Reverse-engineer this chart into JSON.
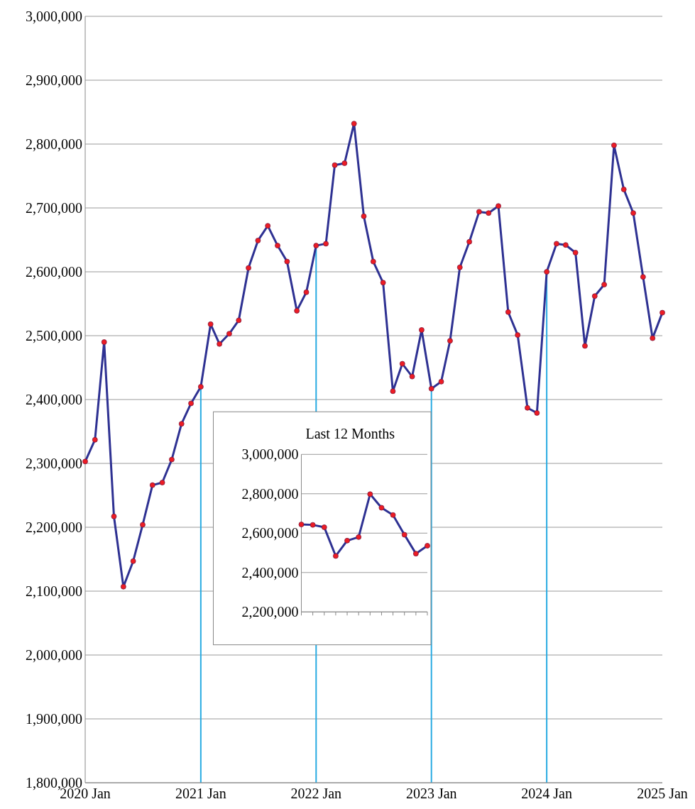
{
  "chart_data": [
    {
      "type": "line",
      "x": [
        "2020-01",
        "2020-02",
        "2020-03",
        "2020-04",
        "2020-05",
        "2020-06",
        "2020-07",
        "2020-08",
        "2020-09",
        "2020-10",
        "2020-11",
        "2020-12",
        "2021-01",
        "2021-02",
        "2021-03",
        "2021-04",
        "2021-05",
        "2021-06",
        "2021-07",
        "2021-08",
        "2021-09",
        "2021-10",
        "2021-11",
        "2021-12",
        "2022-01",
        "2022-02",
        "2022-03",
        "2022-04",
        "2022-05",
        "2022-06",
        "2022-07",
        "2022-08",
        "2022-09",
        "2022-10",
        "2022-11",
        "2022-12",
        "2023-01",
        "2023-02",
        "2023-03",
        "2023-04",
        "2023-05",
        "2023-06",
        "2023-07",
        "2023-08",
        "2023-09",
        "2023-10",
        "2023-11",
        "2023-12",
        "2024-01",
        "2024-02",
        "2024-03",
        "2024-04",
        "2024-05",
        "2024-06",
        "2024-07",
        "2024-08",
        "2024-09",
        "2024-10",
        "2024-11",
        "2024-12",
        "2025-01"
      ],
      "series": [
        {
          "color": "#2e3192",
          "values": [
            2303000,
            2337000,
            2490000,
            2217000,
            2107000,
            2147000,
            2204000,
            2266000,
            2270000,
            2306000,
            2362000,
            2394000,
            2420000,
            2518000,
            2487000,
            2503000,
            2524000,
            2606000,
            2649000,
            2672000,
            2641000,
            2616000,
            2539000,
            2568000,
            2641000,
            2644000,
            2767000,
            2770000,
            2832000,
            2687000,
            2616000,
            2583000,
            2413000,
            2456000,
            2436000,
            2509000,
            2417000,
            2428000,
            2492000,
            2607000,
            2647000,
            2694000,
            2692000,
            2703000,
            2537000,
            2501000,
            2387000,
            2379000,
            2600000,
            2644000,
            2642000,
            2630000,
            2484000,
            2562000,
            2580000,
            2798000,
            2729000,
            2692000,
            2592000,
            2496000,
            2536000
          ]
        }
      ],
      "xlim": [
        "2020-01",
        "2025-01"
      ],
      "xticks": [
        {
          "value": "2020-01",
          "label": "2020 Jan"
        },
        {
          "value": "2021-01",
          "label": "2021 Jan"
        },
        {
          "value": "2022-01",
          "label": "2022 Jan"
        },
        {
          "value": "2023-01",
          "label": "2023 Jan"
        },
        {
          "value": "2024-01",
          "label": "2024 Jan"
        },
        {
          "value": "2025-01",
          "label": "2025 Jan"
        }
      ],
      "ylim": [
        1800000,
        3000000
      ],
      "yticks": [
        {
          "value": 1800000,
          "label": "1,800,000"
        },
        {
          "value": 1900000,
          "label": "1,900,000"
        },
        {
          "value": 2000000,
          "label": "2,000,000"
        },
        {
          "value": 2100000,
          "label": "2,100,000"
        },
        {
          "value": 2200000,
          "label": "2,200,000"
        },
        {
          "value": 2300000,
          "label": "2,300,000"
        },
        {
          "value": 2400000,
          "label": "2,400,000"
        },
        {
          "value": 2500000,
          "label": "2,500,000"
        },
        {
          "value": 2600000,
          "label": "2,600,000"
        },
        {
          "value": 2700000,
          "label": "2,700,000"
        },
        {
          "value": 2800000,
          "label": "2,800,000"
        },
        {
          "value": 2900000,
          "label": "2,900,000"
        },
        {
          "value": 3000000,
          "label": "3,000,000"
        }
      ],
      "ref_lines": [
        {
          "axis": "x",
          "value": "2021-01",
          "color": "#29abe2"
        },
        {
          "axis": "x",
          "value": "2022-01",
          "color": "#29abe2"
        },
        {
          "axis": "x",
          "value": "2023-01",
          "color": "#29abe2"
        },
        {
          "axis": "x",
          "value": "2024-01",
          "color": "#29abe2"
        }
      ],
      "grid": "y",
      "marker": "circle"
    },
    {
      "type": "line",
      "title": "Last 12 Months",
      "categories": [
        null,
        null,
        null,
        null,
        null,
        null,
        null,
        null,
        null,
        null,
        null,
        null
      ],
      "series": [
        {
          "color": "#2e3192",
          "values": [
            2644000,
            2642000,
            2630000,
            2484000,
            2562000,
            2580000,
            2798000,
            2729000,
            2692000,
            2592000,
            2496000,
            2536000
          ]
        }
      ],
      "ylim": [
        2200000,
        3000000
      ],
      "yticks": [
        {
          "value": 2200000,
          "label": "2,200,000"
        },
        {
          "value": 2400000,
          "label": "2,400,000"
        },
        {
          "value": 2600000,
          "label": "2,600,000"
        },
        {
          "value": 2800000,
          "label": "2,800,000"
        },
        {
          "value": 3000000,
          "label": "3,000,000"
        }
      ],
      "grid": "y",
      "marker": "circle",
      "tick_labels": "y"
    }
  ]
}
